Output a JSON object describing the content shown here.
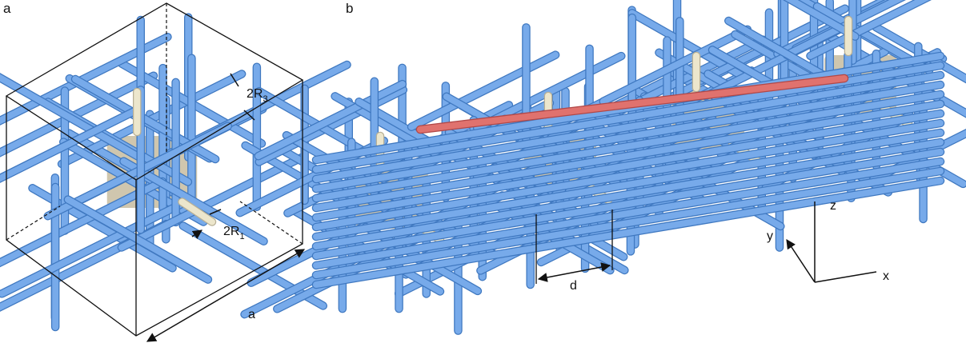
{
  "panels": [
    {
      "label": "a",
      "annotations": [
        {
          "text": "2R",
          "subscript": "3"
        },
        {
          "text": "2R",
          "subscript": "1"
        },
        {
          "text": "a"
        }
      ]
    },
    {
      "label": "b",
      "annotations": [
        {
          "text": "d"
        }
      ],
      "axes": {
        "x": "x",
        "y": "y",
        "z": "z"
      }
    }
  ]
}
